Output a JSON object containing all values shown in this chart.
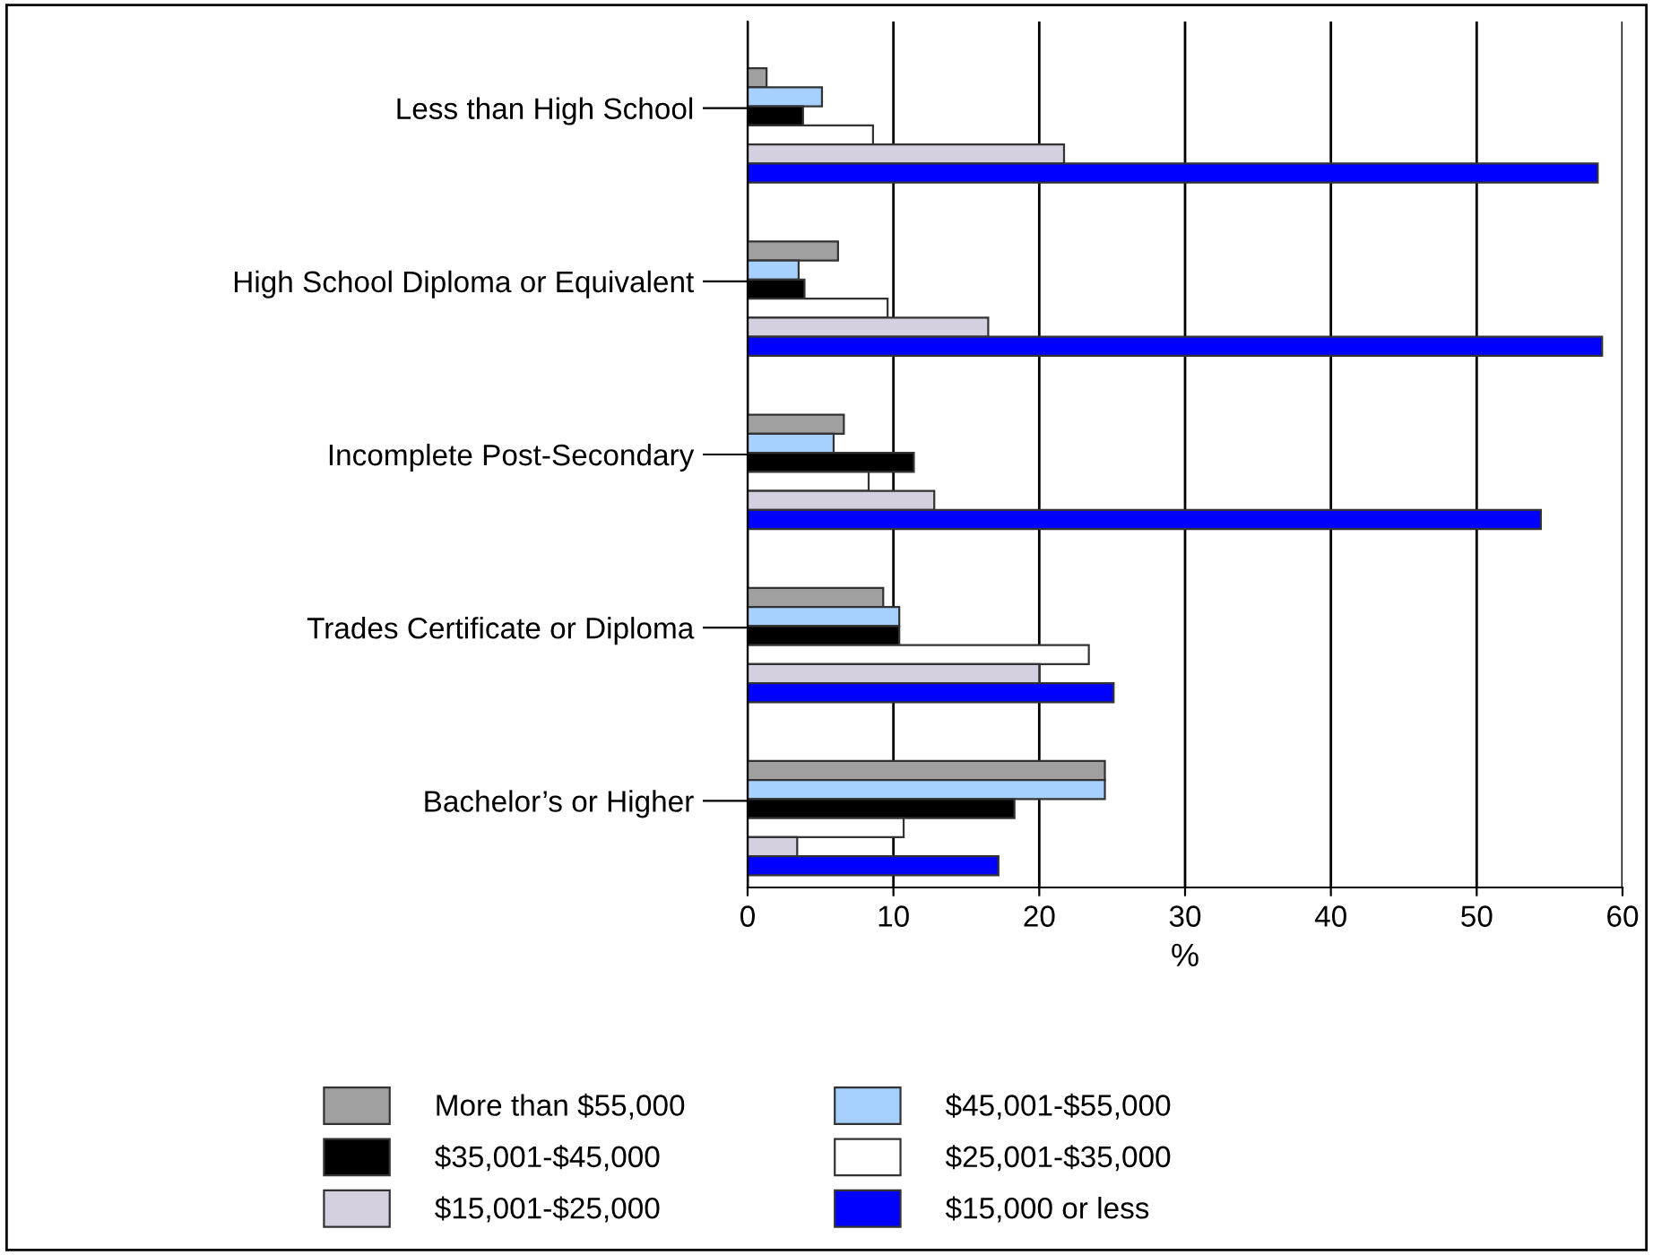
{
  "chart_data": {
    "type": "bar",
    "orientation": "horizontal",
    "xlabel": "%",
    "categories": [
      "Less than High School",
      "High School Diploma or Equivalent",
      "Incomplete Post-Secondary",
      "Trades Certificate or Diploma",
      "Bachelor’s or Higher"
    ],
    "series": [
      {
        "name": "More than $55,000",
        "color": "#a0a0a0",
        "values": [
          1.3,
          6.2,
          6.6,
          9.3,
          24.5
        ]
      },
      {
        "name": "$45,001-$55,000",
        "color": "#a6d1ff",
        "values": [
          5.1,
          3.5,
          5.9,
          10.4,
          24.5
        ]
      },
      {
        "name": "$35,001-$45,000",
        "color": "#000000",
        "values": [
          3.8,
          3.9,
          11.4,
          10.4,
          18.3
        ]
      },
      {
        "name": "$25,001-$35,000",
        "color": "#ffffff",
        "values": [
          8.6,
          9.6,
          8.3,
          23.4,
          10.7
        ]
      },
      {
        "name": "$15,001-$25,000",
        "color": "#d4d0e0",
        "values": [
          21.7,
          16.5,
          12.8,
          20.0,
          3.4
        ]
      },
      {
        "name": "$15,000 or less",
        "color": "#0000ff",
        "values": [
          58.3,
          58.6,
          54.4,
          25.1,
          17.2
        ]
      }
    ],
    "xlim": [
      0,
      60
    ],
    "xticks": [
      0,
      10,
      20,
      30,
      40,
      50,
      60
    ],
    "grid": "x",
    "legend": "bottom"
  }
}
